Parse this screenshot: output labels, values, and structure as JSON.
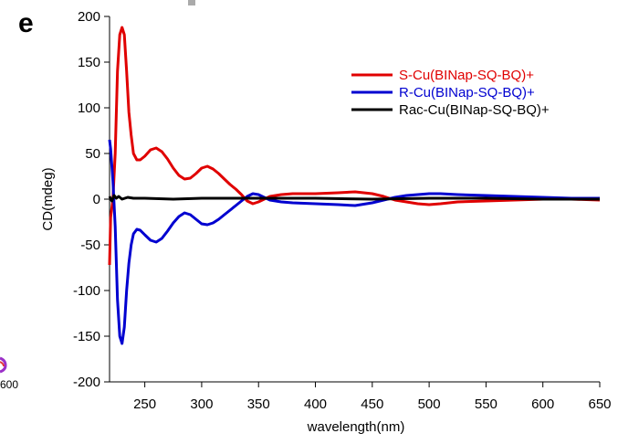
{
  "panel_label": "e",
  "stray_fragment": {
    "text": "600",
    "colors": [
      "#9b30c8",
      "#e23a3a"
    ]
  },
  "chart_data": {
    "type": "line",
    "title": "",
    "xlabel": "wavelength(nm)",
    "ylabel": "CD(mdeg)",
    "xlim": [
      219,
      650
    ],
    "ylim": [
      -200,
      200
    ],
    "xticks": [
      250,
      300,
      350,
      400,
      450,
      500,
      550,
      600,
      650
    ],
    "xtick_labels": [
      "250",
      "300",
      "350",
      "400",
      "450",
      "500",
      "550",
      "600",
      "650"
    ],
    "yticks": [
      -200,
      -150,
      -100,
      -50,
      0,
      50,
      100,
      150,
      200
    ],
    "ytick_labels": [
      "-200",
      "-150",
      "-100",
      "-50",
      "0",
      "50",
      "100",
      "150",
      "200"
    ],
    "grid": false,
    "legend_position": "top-right",
    "series": [
      {
        "name": "S-Cu(BINap-SQ-BQ)+",
        "color": "#e00000",
        "points": [
          [
            219,
            -72
          ],
          [
            220,
            -20
          ],
          [
            222,
            0
          ],
          [
            224,
            50
          ],
          [
            226,
            140
          ],
          [
            228,
            180
          ],
          [
            230,
            188
          ],
          [
            232,
            180
          ],
          [
            234,
            140
          ],
          [
            236,
            95
          ],
          [
            238,
            70
          ],
          [
            240,
            50
          ],
          [
            243,
            43
          ],
          [
            246,
            43
          ],
          [
            250,
            47
          ],
          [
            255,
            54
          ],
          [
            260,
            56
          ],
          [
            265,
            52
          ],
          [
            270,
            44
          ],
          [
            275,
            34
          ],
          [
            280,
            26
          ],
          [
            285,
            22
          ],
          [
            290,
            23
          ],
          [
            295,
            28
          ],
          [
            300,
            34
          ],
          [
            305,
            36
          ],
          [
            310,
            33
          ],
          [
            315,
            28
          ],
          [
            320,
            22
          ],
          [
            325,
            16
          ],
          [
            330,
            11
          ],
          [
            335,
            5
          ],
          [
            340,
            -2
          ],
          [
            345,
            -5
          ],
          [
            350,
            -3
          ],
          [
            355,
            0
          ],
          [
            360,
            3
          ],
          [
            370,
            5
          ],
          [
            380,
            6
          ],
          [
            400,
            6
          ],
          [
            420,
            7
          ],
          [
            435,
            8
          ],
          [
            450,
            6
          ],
          [
            460,
            3
          ],
          [
            470,
            -1
          ],
          [
            480,
            -3
          ],
          [
            490,
            -5
          ],
          [
            500,
            -6
          ],
          [
            510,
            -5
          ],
          [
            525,
            -3
          ],
          [
            550,
            -2
          ],
          [
            575,
            -1
          ],
          [
            600,
            0
          ],
          [
            625,
            0
          ],
          [
            650,
            -1
          ]
        ]
      },
      {
        "name": "R-Cu(BINap-SQ-BQ)+",
        "color": "#0000d0",
        "points": [
          [
            219,
            65
          ],
          [
            220,
            55
          ],
          [
            222,
            20
          ],
          [
            224,
            -30
          ],
          [
            226,
            -110
          ],
          [
            228,
            -150
          ],
          [
            230,
            -158
          ],
          [
            232,
            -140
          ],
          [
            234,
            -100
          ],
          [
            236,
            -70
          ],
          [
            238,
            -50
          ],
          [
            240,
            -38
          ],
          [
            243,
            -33
          ],
          [
            246,
            -34
          ],
          [
            250,
            -39
          ],
          [
            255,
            -45
          ],
          [
            260,
            -47
          ],
          [
            265,
            -43
          ],
          [
            270,
            -35
          ],
          [
            275,
            -26
          ],
          [
            280,
            -19
          ],
          [
            285,
            -15
          ],
          [
            290,
            -17
          ],
          [
            295,
            -22
          ],
          [
            300,
            -27
          ],
          [
            305,
            -28
          ],
          [
            310,
            -26
          ],
          [
            315,
            -22
          ],
          [
            320,
            -17
          ],
          [
            325,
            -12
          ],
          [
            330,
            -7
          ],
          [
            335,
            -2
          ],
          [
            340,
            3
          ],
          [
            345,
            6
          ],
          [
            350,
            5
          ],
          [
            355,
            2
          ],
          [
            360,
            -1
          ],
          [
            370,
            -3
          ],
          [
            380,
            -4
          ],
          [
            400,
            -5
          ],
          [
            420,
            -6
          ],
          [
            435,
            -7
          ],
          [
            450,
            -4
          ],
          [
            460,
            -1
          ],
          [
            470,
            2
          ],
          [
            480,
            4
          ],
          [
            490,
            5
          ],
          [
            500,
            6
          ],
          [
            510,
            6
          ],
          [
            525,
            5
          ],
          [
            550,
            4
          ],
          [
            575,
            3
          ],
          [
            600,
            2
          ],
          [
            625,
            1
          ],
          [
            650,
            1
          ]
        ]
      },
      {
        "name": "Rac-Cu(BINap-SQ-BQ)+",
        "color": "#000000",
        "points": [
          [
            219,
            3
          ],
          [
            221,
            -2
          ],
          [
            223,
            4
          ],
          [
            225,
            1
          ],
          [
            227,
            3
          ],
          [
            230,
            0
          ],
          [
            235,
            2
          ],
          [
            240,
            1
          ],
          [
            250,
            1
          ],
          [
            275,
            0
          ],
          [
            300,
            1
          ],
          [
            350,
            1
          ],
          [
            400,
            1
          ],
          [
            450,
            0
          ],
          [
            500,
            1
          ],
          [
            550,
            1
          ],
          [
            600,
            0
          ],
          [
            650,
            0
          ]
        ]
      }
    ]
  }
}
